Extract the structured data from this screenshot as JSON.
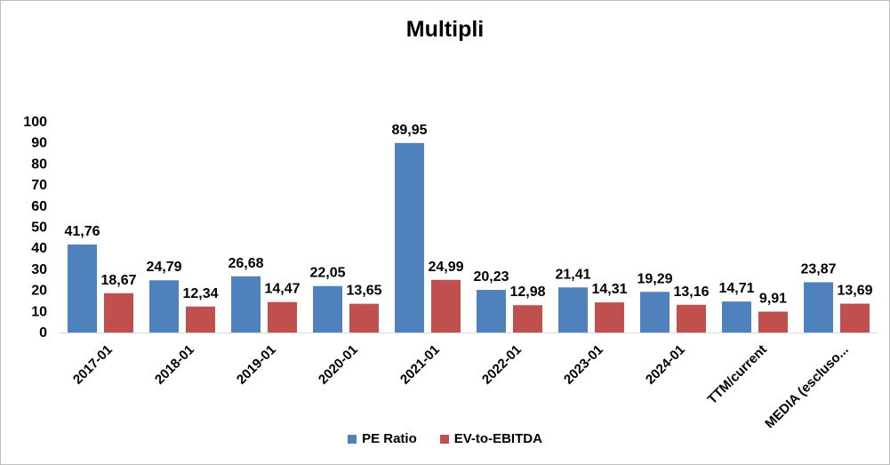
{
  "chart_data": {
    "type": "bar",
    "title": "Multipli",
    "categories": [
      "2017-01",
      "2018-01",
      "2019-01",
      "2020-01",
      "2021-01",
      "2022-01",
      "2023-01",
      "2024-01",
      "TTM/current",
      "MEDIA (escluso..."
    ],
    "series": [
      {
        "name": "PE Ratio",
        "color": "#4f81bd",
        "values": [
          41.76,
          24.79,
          26.68,
          22.05,
          89.95,
          20.23,
          21.41,
          19.29,
          14.71,
          23.87
        ],
        "labels": [
          "41,76",
          "24,79",
          "26,68",
          "22,05",
          "89,95",
          "20,23",
          "21,41",
          "19,29",
          "14,71",
          "23,87"
        ]
      },
      {
        "name": "EV-to-EBITDA",
        "color": "#c0504d",
        "values": [
          18.67,
          12.34,
          14.47,
          13.65,
          24.99,
          12.98,
          14.31,
          13.16,
          9.91,
          13.69
        ],
        "labels": [
          "18,67",
          "12,34",
          "14,47",
          "13,65",
          "24,99",
          "12,98",
          "14,31",
          "13,16",
          "9,91",
          "13,69"
        ]
      }
    ],
    "ylim": [
      0,
      100
    ],
    "yticks": [
      "0",
      "10",
      "20",
      "30",
      "40",
      "50",
      "60",
      "70",
      "80",
      "90",
      "100"
    ],
    "grid": false,
    "legend_position": "bottom"
  }
}
